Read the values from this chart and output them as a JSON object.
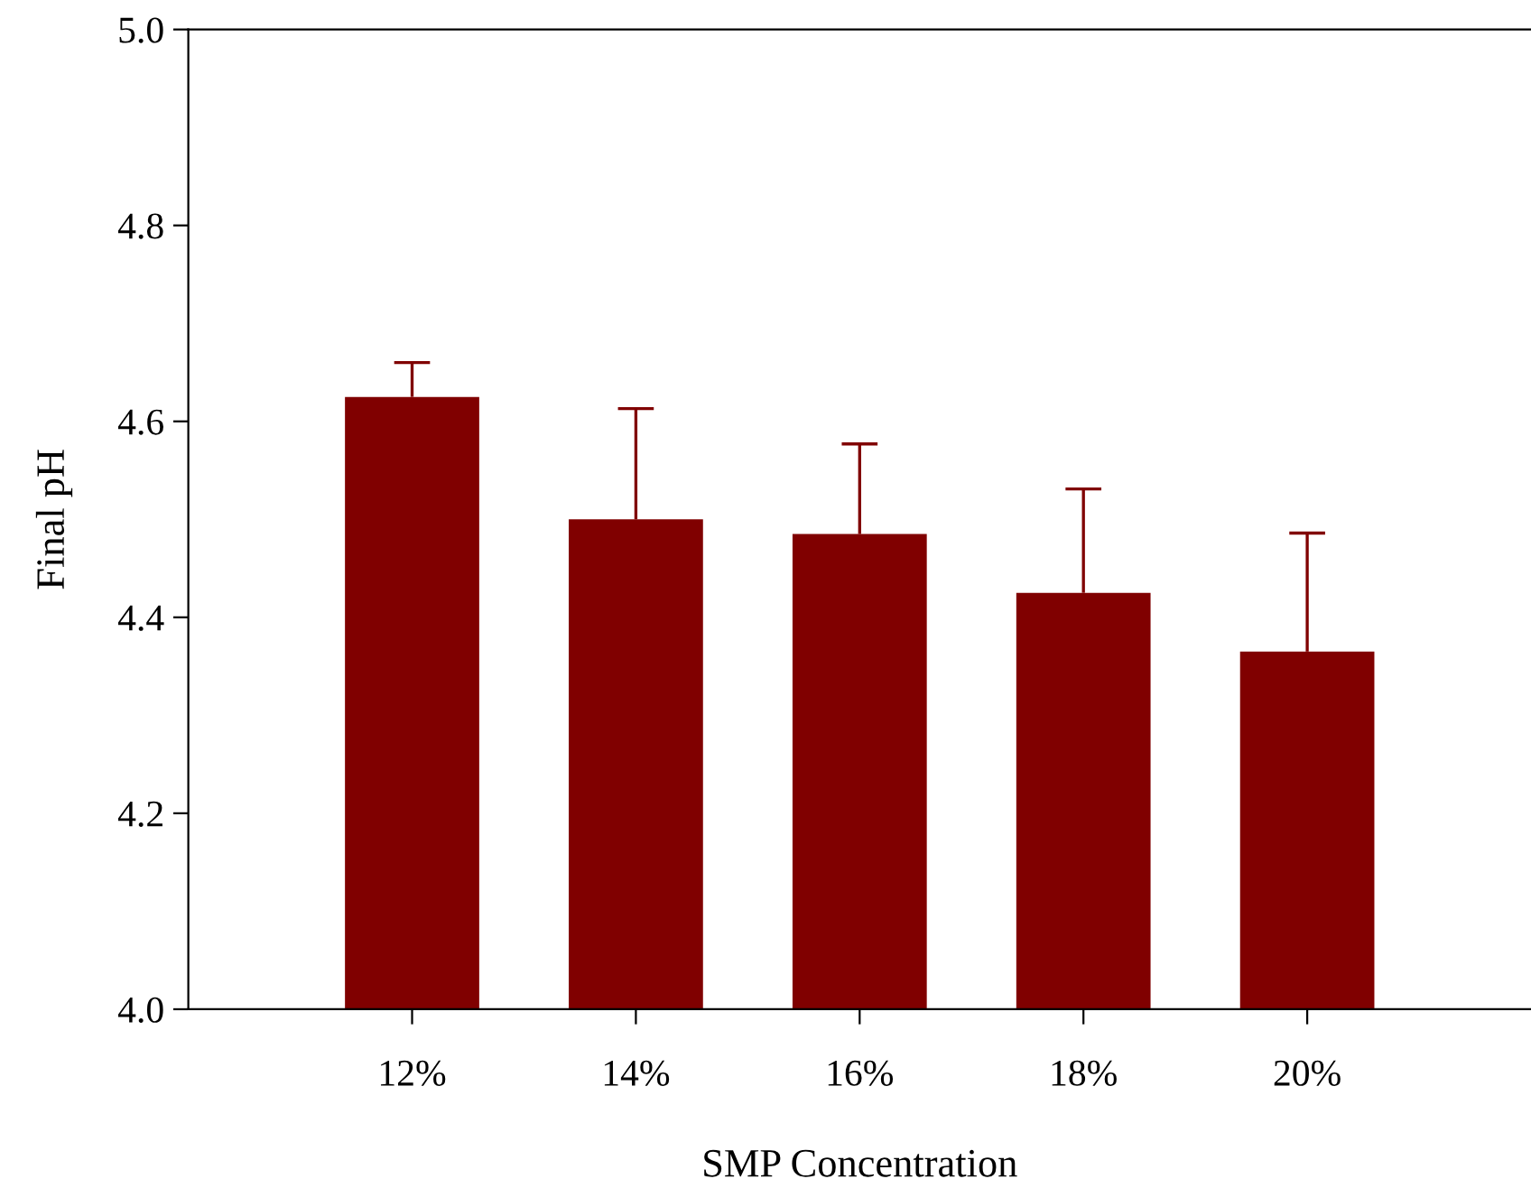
{
  "chart_data": {
    "type": "bar",
    "xlabel": "SMP Concentration",
    "ylabel": "Final pH",
    "categories": [
      "12%",
      "14%",
      "16%",
      "18%",
      "20%"
    ],
    "values": [
      4.625,
      4.5,
      4.485,
      4.425,
      4.365
    ],
    "errors": [
      [
        4.625,
        4.66
      ],
      [
        4.5,
        4.613
      ],
      [
        4.485,
        4.577
      ],
      [
        4.425,
        4.531
      ],
      [
        4.365,
        4.486
      ]
    ],
    "color": "#800000",
    "ylim": [
      4.0,
      5.0
    ],
    "yticks": [
      {
        "value": 4.0,
        "label": "4.0"
      },
      4.2,
      4.4,
      4.6,
      4.8,
      {
        "value": 5.0,
        "label": "5.0"
      }
    ],
    "grid": false,
    "legend": false
  }
}
